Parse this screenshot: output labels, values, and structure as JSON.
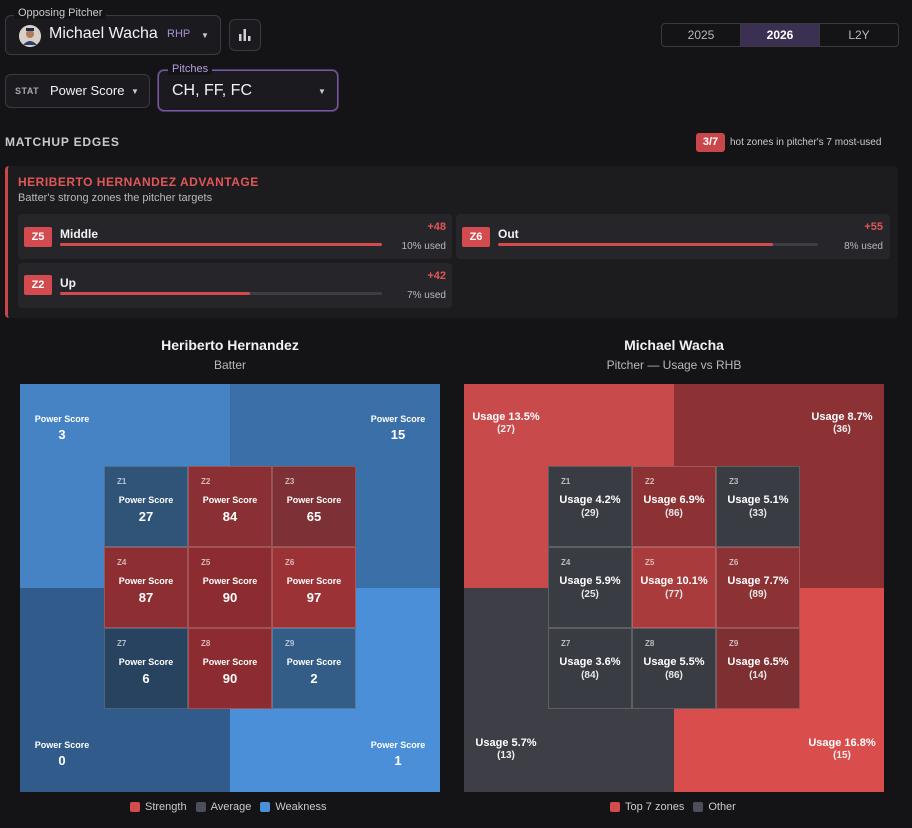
{
  "header": {
    "pitcher_label": "Opposing Pitcher",
    "pitcher_name": "Michael Wacha",
    "pitcher_hand": "RHP",
    "seasons": [
      "2025",
      "2026",
      "L2Y"
    ],
    "selected_season": "2026",
    "stat_label": "STAT",
    "stat_value": "Power Score",
    "pitches_label": "Pitches",
    "pitches_value": "CH, FF, FC"
  },
  "matchup": {
    "title": "MATCHUP EDGES",
    "hot_badge": "3/7",
    "hot_text": "hot zones in pitcher's 7 most-used",
    "advantage_title": "HERIBERTO HERNANDEZ ADVANTAGE",
    "advantage_sub": "Batter's strong zones the pitcher targets",
    "edges": [
      {
        "zone": "Z5",
        "name": "Middle",
        "delta": "+48",
        "used": "10% used",
        "fill": 1.0
      },
      {
        "zone": "Z6",
        "name": "Out",
        "delta": "+55",
        "used": "8% used",
        "fill": 0.86
      },
      {
        "zone": "Z2",
        "name": "Up",
        "delta": "+42",
        "used": "7% used",
        "fill": 0.59
      }
    ]
  },
  "batter_panel": {
    "title": "Heriberto Hernandez",
    "subtitle": "Batter",
    "stat_label": "Power Score",
    "outer": {
      "tl": "3",
      "tr": "15",
      "bl": "0",
      "br": "1"
    },
    "zones": [
      {
        "z": "Z1",
        "value": "27",
        "color": "#2f5478"
      },
      {
        "z": "Z2",
        "value": "84",
        "color": "#8a2f33"
      },
      {
        "z": "Z3",
        "value": "65",
        "color": "#7d3035"
      },
      {
        "z": "Z4",
        "value": "87",
        "color": "#8c2e32"
      },
      {
        "z": "Z5",
        "value": "90",
        "color": "#8d2c30"
      },
      {
        "z": "Z6",
        "value": "97",
        "color": "#9a3236"
      },
      {
        "z": "Z7",
        "value": "6",
        "color": "#28435f"
      },
      {
        "z": "Z8",
        "value": "90",
        "color": "#8d2c30"
      },
      {
        "z": "Z9",
        "value": "2",
        "color": "#335d87"
      }
    ],
    "outer_colors": {
      "tl": "#4683c4",
      "tr": "#3b6fa8",
      "bl": "#305b8b",
      "br": "#4a8fd8"
    },
    "legend": [
      {
        "label": "Strength",
        "color": "#d34b4e"
      },
      {
        "label": "Average",
        "color": "#4b4f5a"
      },
      {
        "label": "Weakness",
        "color": "#4a8fd8"
      }
    ]
  },
  "pitcher_panel": {
    "title": "Michael Wacha",
    "subtitle": "Pitcher — Usage vs RHB",
    "outer": {
      "tl": {
        "usage": "Usage 13.5%",
        "count": "(27)",
        "color": "#c94a4b"
      },
      "tr": {
        "usage": "Usage 8.7%",
        "count": "(36)",
        "color": "#8c3234"
      },
      "bl": {
        "usage": "Usage 5.7%",
        "count": "(13)",
        "color": "#3e3f46"
      },
      "br": {
        "usage": "Usage 16.8%",
        "count": "(15)",
        "color": "#d94d4d"
      }
    },
    "zones": [
      {
        "z": "Z1",
        "usage": "Usage 4.2%",
        "count": "(29)",
        "color": "#3a3c44"
      },
      {
        "z": "Z2",
        "usage": "Usage 6.9%",
        "count": "(86)",
        "color": "#8c3235"
      },
      {
        "z": "Z3",
        "usage": "Usage 5.1%",
        "count": "(33)",
        "color": "#3a3c44"
      },
      {
        "z": "Z4",
        "usage": "Usage 5.9%",
        "count": "(25)",
        "color": "#3a3c44"
      },
      {
        "z": "Z5",
        "usage": "Usage 10.1%",
        "count": "(77)",
        "color": "#a93b3d"
      },
      {
        "z": "Z6",
        "usage": "Usage 7.7%",
        "count": "(89)",
        "color": "#8c3235"
      },
      {
        "z": "Z7",
        "usage": "Usage 3.6%",
        "count": "(84)",
        "color": "#3a3c44"
      },
      {
        "z": "Z8",
        "usage": "Usage 5.5%",
        "count": "(86)",
        "color": "#3a3c44"
      },
      {
        "z": "Z9",
        "usage": "Usage 6.5%",
        "count": "(14)",
        "color": "#7d2f32"
      }
    ],
    "legend": [
      {
        "label": "Top 7 zones",
        "color": "#d34b4e"
      },
      {
        "label": "Other",
        "color": "#4b4f5a"
      }
    ]
  }
}
